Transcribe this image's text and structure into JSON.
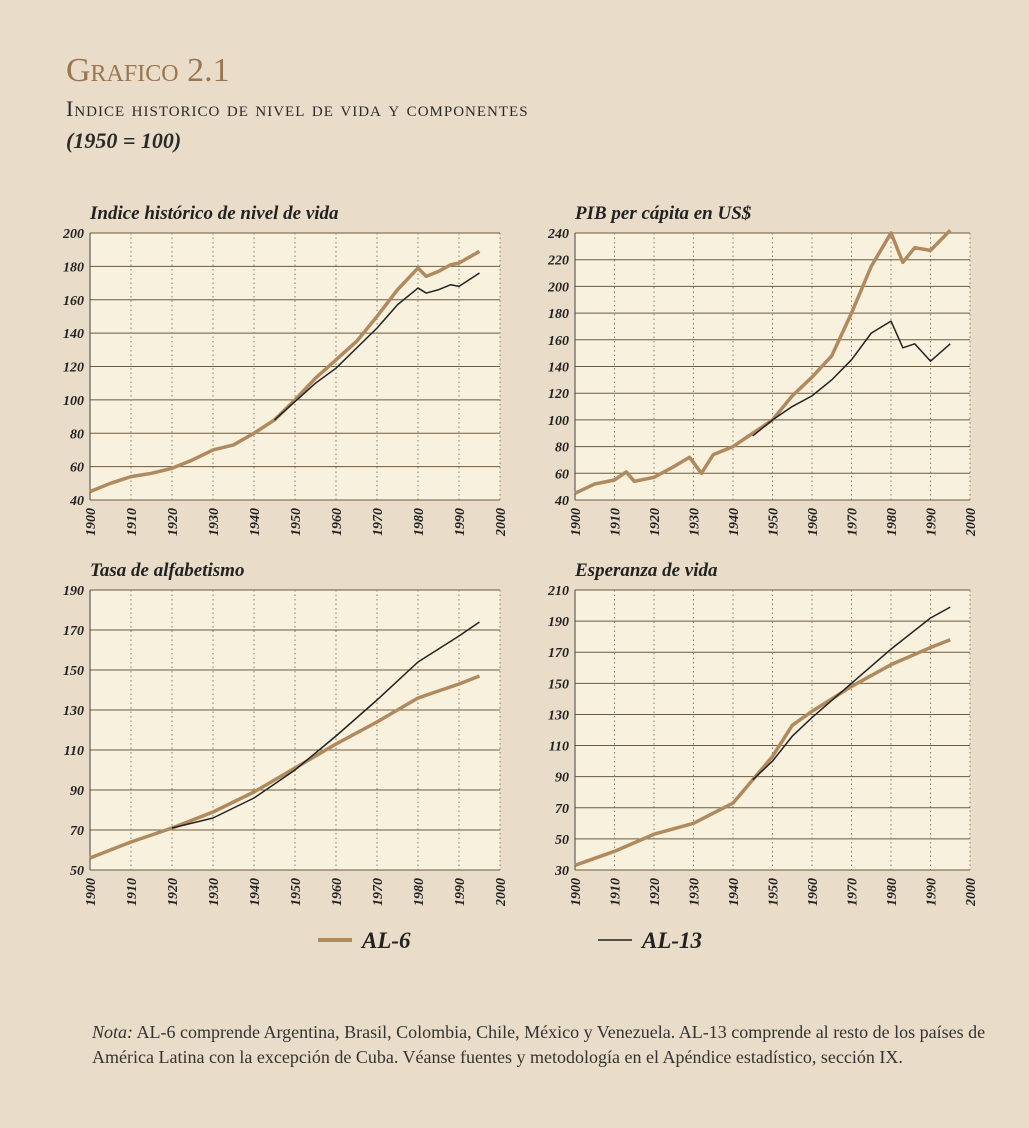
{
  "title": "Grafico 2.1",
  "subtitle": "Indice historico de nivel de vida y componentes",
  "base": "(1950 = 100)",
  "note_label": "Nota:",
  "note": "AL-6 comprende Argentina, Brasil, Colombia, Chile, México y Venezuela. AL-13 comprende al resto de los países de América Latina con la excepción de Cuba. Véanse fuentes y metodología en el Apéndice estadístico, sección IX.",
  "chart_data": [
    {
      "type": "line",
      "title": "Indice histórico de nivel de vida",
      "x": [
        1900,
        1905,
        1910,
        1915,
        1920,
        1925,
        1930,
        1935,
        1940,
        1945,
        1950,
        1955,
        1960,
        1965,
        1970,
        1975,
        1980,
        1982,
        1985,
        1988,
        1990,
        1995
      ],
      "series": [
        {
          "name": "AL-6",
          "color": "#b08a5e",
          "values": [
            45,
            50,
            54,
            56,
            59,
            64,
            70,
            73,
            80,
            88,
            100,
            113,
            124,
            135,
            150,
            166,
            179,
            174,
            177,
            181,
            182,
            189
          ]
        },
        {
          "name": "AL-13",
          "color": "#222222",
          "values": [
            null,
            null,
            null,
            null,
            null,
            null,
            null,
            null,
            null,
            88,
            99,
            110,
            119,
            131,
            143,
            157,
            167,
            164,
            166,
            169,
            168,
            176
          ]
        }
      ],
      "xlim": [
        1900,
        2000
      ],
      "xticks": [
        1900,
        1910,
        1920,
        1930,
        1940,
        1950,
        1960,
        1970,
        1980,
        1990,
        2000
      ],
      "ylim": [
        40,
        200
      ],
      "yticks": [
        40,
        60,
        80,
        100,
        120,
        140,
        160,
        180,
        200
      ],
      "grid": true
    },
    {
      "type": "line",
      "title": "PIB per cápita en US$",
      "x": [
        1900,
        1905,
        1910,
        1913,
        1915,
        1920,
        1925,
        1929,
        1932,
        1935,
        1940,
        1945,
        1950,
        1955,
        1960,
        1965,
        1970,
        1975,
        1980,
        1983,
        1986,
        1990,
        1995
      ],
      "series": [
        {
          "name": "AL-6",
          "color": "#b08a5e",
          "values": [
            45,
            52,
            55,
            61,
            54,
            57,
            65,
            72,
            60,
            74,
            80,
            90,
            100,
            118,
            132,
            148,
            180,
            215,
            240,
            218,
            229,
            227,
            242
          ]
        },
        {
          "name": "AL-13",
          "color": "#222222",
          "values": [
            null,
            null,
            null,
            null,
            null,
            null,
            null,
            null,
            null,
            null,
            null,
            88,
            100,
            110,
            118,
            130,
            145,
            165,
            174,
            154,
            157,
            144,
            157
          ]
        }
      ],
      "xlim": [
        1900,
        2000
      ],
      "xticks": [
        1900,
        1910,
        1920,
        1930,
        1940,
        1950,
        1960,
        1970,
        1980,
        1990,
        2000
      ],
      "ylim": [
        40,
        240
      ],
      "yticks": [
        40,
        60,
        80,
        100,
        120,
        140,
        160,
        180,
        200,
        220,
        240
      ],
      "grid": true
    },
    {
      "type": "line",
      "title": "Tasa de alfabetismo",
      "x": [
        1900,
        1910,
        1920,
        1930,
        1940,
        1950,
        1960,
        1970,
        1980,
        1990,
        1995
      ],
      "series": [
        {
          "name": "AL-6",
          "color": "#b08a5e",
          "values": [
            56,
            64,
            71,
            79,
            89,
            101,
            113,
            124,
            136,
            143,
            147
          ]
        },
        {
          "name": "AL-13",
          "color": "#222222",
          "values": [
            null,
            null,
            71,
            76,
            86,
            100,
            117,
            135,
            154,
            167,
            174
          ]
        }
      ],
      "xlim": [
        1900,
        2000
      ],
      "xticks": [
        1900,
        1910,
        1920,
        1930,
        1940,
        1950,
        1960,
        1970,
        1980,
        1990,
        2000
      ],
      "ylim": [
        50,
        190
      ],
      "yticks": [
        50,
        70,
        90,
        110,
        130,
        150,
        170,
        190
      ],
      "grid": true
    },
    {
      "type": "line",
      "title": "Esperanza de vida",
      "x": [
        1900,
        1910,
        1920,
        1930,
        1940,
        1945,
        1950,
        1955,
        1960,
        1970,
        1980,
        1990,
        1995
      ],
      "series": [
        {
          "name": "AL-6",
          "color": "#b08a5e",
          "values": [
            33,
            42,
            53,
            60,
            73,
            88,
            103,
            123,
            132,
            148,
            162,
            173,
            178
          ]
        },
        {
          "name": "AL-13",
          "color": "#222222",
          "values": [
            null,
            null,
            null,
            null,
            null,
            88,
            100,
            116,
            128,
            150,
            172,
            192,
            199
          ]
        }
      ],
      "xlim": [
        1900,
        2000
      ],
      "xticks": [
        1900,
        1910,
        1920,
        1930,
        1940,
        1950,
        1960,
        1970,
        1980,
        1990,
        2000
      ],
      "ylim": [
        30,
        210
      ],
      "yticks": [
        30,
        50,
        70,
        90,
        110,
        130,
        150,
        170,
        190,
        210
      ],
      "grid": true
    }
  ]
}
